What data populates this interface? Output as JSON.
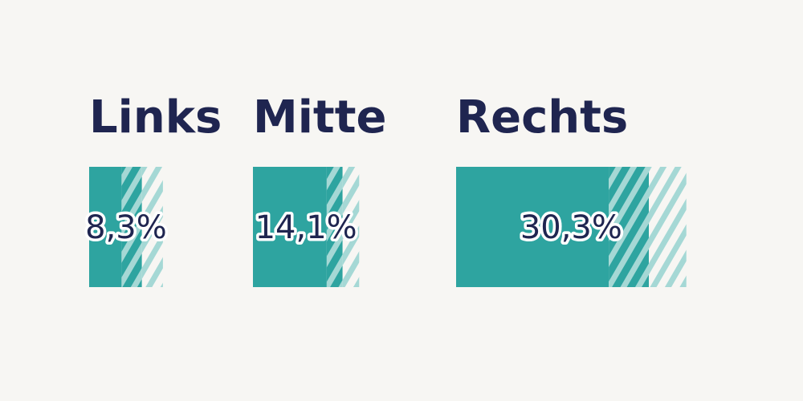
{
  "chart_data": {
    "type": "bar",
    "categories": [
      "Links",
      "Mitte",
      "Rechts"
    ],
    "value_labels": [
      "8,3%",
      "14,1%",
      "30,3%"
    ],
    "series": [
      {
        "values": [
          8.3,
          14.1,
          30.3
        ]
      }
    ],
    "uncertainty": [
      {
        "lower_hatch": 3.2,
        "upper_hatch": 3.3
      },
      {
        "lower_hatch": 2.5,
        "upper_hatch": 2.6
      },
      {
        "lower_hatch": 6.3,
        "upper_hatch": 5.9
      }
    ],
    "title": "",
    "xlabel": "",
    "ylabel": "",
    "grid": false,
    "legend": "none"
  },
  "colors": {
    "background": "#f7f6f3",
    "bar": "#2ea4a0",
    "hatch_light": "#a5d8d5",
    "text": "#1f2550",
    "label_outline": "#ffffff"
  }
}
